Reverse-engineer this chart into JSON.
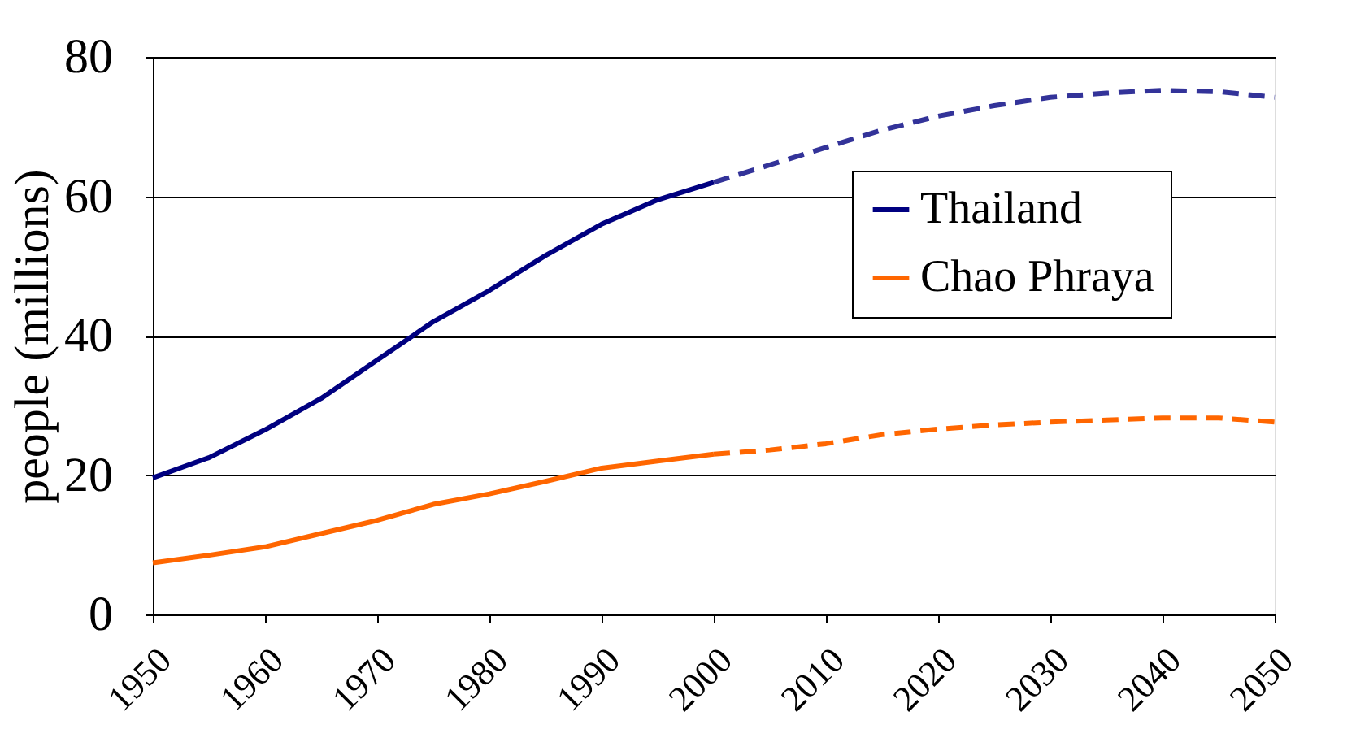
{
  "chart_data": {
    "type": "line",
    "ylabel": "people (millions)",
    "xlim": [
      1950,
      2050
    ],
    "xticks": [
      1950,
      1960,
      1970,
      1980,
      1990,
      2000,
      2010,
      2020,
      2030,
      2040,
      2050
    ],
    "ylim": [
      0,
      80
    ],
    "yticks": [
      0,
      20,
      40,
      60,
      80
    ],
    "grid": "y",
    "legend": "right",
    "series": [
      {
        "name": "Thailand",
        "color": "#000080",
        "line_style": "solid",
        "x": [
          1950,
          1955,
          1960,
          1965,
          1970,
          1975,
          1980,
          1985,
          1990,
          1995,
          2000
        ],
        "values": [
          19.6,
          22.5,
          26.5,
          31,
          36.5,
          42,
          46.5,
          51.5,
          56,
          59.5,
          62
        ]
      },
      {
        "color": "#333399",
        "line_style": "dashed",
        "x": [
          2000,
          2005,
          2010,
          2015,
          2020,
          2025,
          2030,
          2035,
          2040,
          2045,
          2050
        ],
        "values": [
          62,
          64.5,
          67,
          69.5,
          71.5,
          73,
          74.2,
          74.8,
          75.2,
          75,
          74.2
        ]
      },
      {
        "name": "Chao Phraya",
        "color": "#ff6600",
        "line_style": "solid",
        "x": [
          1950,
          1955,
          1960,
          1965,
          1970,
          1975,
          1980,
          1985,
          1990,
          1995,
          2000
        ],
        "values": [
          7.4,
          8.5,
          9.7,
          11.6,
          13.5,
          15.8,
          17.3,
          19.1,
          21,
          22,
          23
        ]
      },
      {
        "color": "#ff6600",
        "line_style": "dashed",
        "x": [
          2000,
          2005,
          2010,
          2015,
          2020,
          2025,
          2030,
          2035,
          2040,
          2045,
          2050
        ],
        "values": [
          23,
          23.6,
          24.5,
          25.8,
          26.6,
          27.2,
          27.6,
          27.9,
          28.2,
          28.2,
          27.6
        ]
      }
    ]
  }
}
